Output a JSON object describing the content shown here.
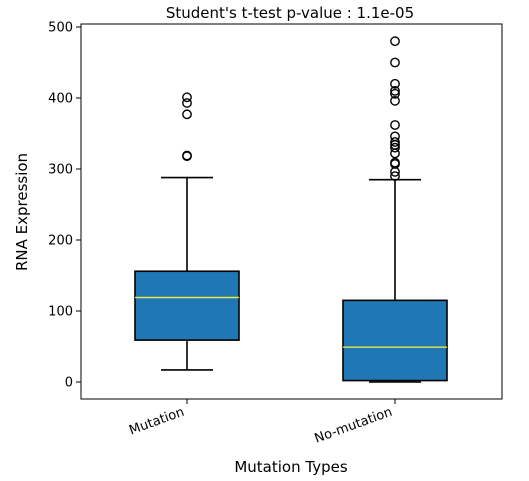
{
  "chart_data": {
    "type": "boxplot",
    "title": "Student's t-test p-value : 1.1e-05",
    "xlabel": "Mutation Types",
    "ylabel": "RNA Expression",
    "ylim": [
      -25,
      505
    ],
    "yticks": [
      0,
      100,
      200,
      300,
      400,
      500
    ],
    "grid": false,
    "box_color": "#1f77b4",
    "median_color": "#e8e84a",
    "categories": [
      "Mutation",
      "No-mutation"
    ],
    "boxes": [
      {
        "label": "Mutation",
        "whisker_low": 17,
        "q1": 59,
        "median": 119,
        "q3": 156,
        "whisker_high": 288,
        "outliers": [
          318,
          319,
          377,
          393,
          401
        ]
      },
      {
        "label": "No-mutation",
        "whisker_low": 0,
        "q1": 2,
        "median": 49,
        "q3": 115,
        "whisker_high": 285,
        "outliers": [
          290,
          296,
          307,
          309,
          322,
          330,
          334,
          338,
          346,
          362,
          396,
          406,
          410,
          420,
          450,
          480
        ]
      }
    ]
  }
}
